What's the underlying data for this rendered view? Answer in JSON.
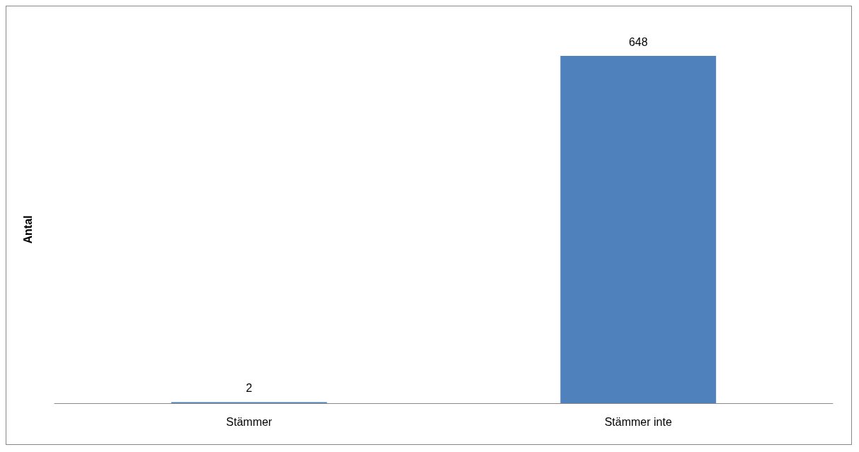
{
  "chart_data": {
    "type": "bar",
    "ylabel": "Antal",
    "categories": [
      "Stämmer",
      "Stämmer inte"
    ],
    "values": [
      2,
      648
    ],
    "color": "#4f81bd",
    "data_labels": true
  }
}
